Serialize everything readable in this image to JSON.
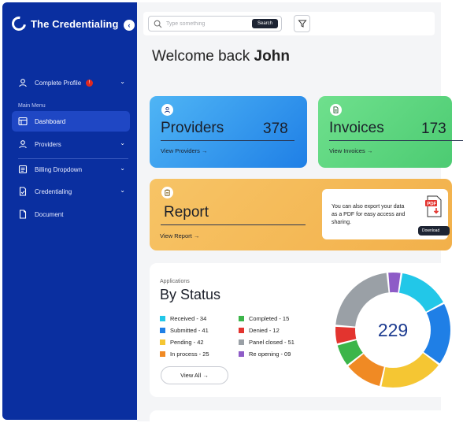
{
  "brand": {
    "name": "The Credentialing",
    "collapse_glyph": "‹"
  },
  "sidebar": {
    "profile": {
      "label": "Complete Profile",
      "badge": "!"
    },
    "menu_label": "Main Menu",
    "items": [
      {
        "label": "Dashboard",
        "icon": "dashboard-icon",
        "active": true
      },
      {
        "label": "Providers",
        "icon": "user-icon",
        "has_children": true
      },
      {
        "label": "Billing Dropdown",
        "icon": "billing-icon",
        "has_children": true
      },
      {
        "label": "Credentialing",
        "icon": "document-check-icon",
        "has_children": true
      },
      {
        "label": "Document",
        "icon": "file-icon",
        "has_children": false
      }
    ]
  },
  "search": {
    "placeholder": "Type something",
    "button_label": "Search"
  },
  "welcome": {
    "prefix": "Welcome back",
    "name": "John"
  },
  "cards": {
    "providers": {
      "title": "Providers",
      "value": "378",
      "link": "View Providers"
    },
    "invoices": {
      "title": "Invoices",
      "value": "173",
      "link": "View Invoices"
    },
    "report": {
      "title": "Report",
      "link": "View Report"
    }
  },
  "export": {
    "text": "You can also export your data as a PDF for easy access and sharing.",
    "pdf_label": "PDF",
    "download_label": "Download"
  },
  "status": {
    "subtitle": "Applications",
    "title": "By Status",
    "total": "229",
    "view_all": "View All",
    "legend_left": [
      {
        "label": "Received - 34",
        "color": "#22c7e8"
      },
      {
        "label": "Submitted - 41",
        "color": "#1f7fe6"
      },
      {
        "label": "Pending - 42",
        "color": "#f5c633"
      },
      {
        "label": "In process - 25",
        "color": "#f08a24"
      }
    ],
    "legend_right": [
      {
        "label": "Completed - 15",
        "color": "#3cb54a"
      },
      {
        "label": "Denied - 12",
        "color": "#e3342f"
      },
      {
        "label": "Panel closed - 51",
        "color": "#9aa0a6"
      },
      {
        "label": "Re opening - 09",
        "color": "#8e5cc7"
      }
    ]
  },
  "chart_data": {
    "type": "pie",
    "categories": [
      "Received",
      "Submitted",
      "Pending",
      "In process",
      "Completed",
      "Denied",
      "Panel closed",
      "Re opening"
    ],
    "values": [
      34,
      41,
      42,
      25,
      15,
      12,
      51,
      9
    ],
    "total": 229,
    "colors": [
      "#22c7e8",
      "#1f7fe6",
      "#f5c633",
      "#f08a24",
      "#3cb54a",
      "#e3342f",
      "#9aa0a6",
      "#8e5cc7"
    ]
  }
}
